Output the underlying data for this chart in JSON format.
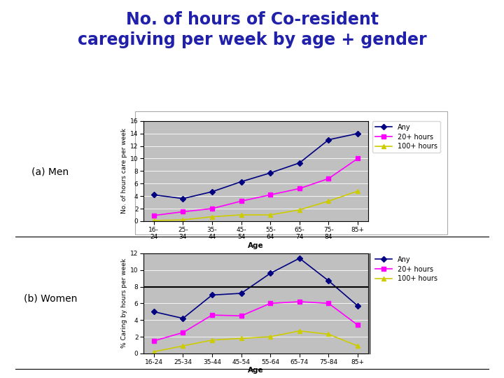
{
  "title_line1": "No. of hours of Co-resident",
  "title_line2": "caregiving per week by age + gender",
  "title_color": "#2020AA",
  "title_fontsize": 17,
  "age_labels_top": [
    "16-\n24",
    "25-\n34",
    "35-\n44",
    "45-\n54",
    "55-\n64",
    "65-\n74",
    "75-\n84",
    "85+"
  ],
  "age_labels_bottom": [
    "16-24",
    "25-34",
    "35-44",
    "45-54",
    "55-64",
    "65-74",
    "75-84",
    "85+"
  ],
  "men_any": [
    4.2,
    3.6,
    4.7,
    6.3,
    7.7,
    9.3,
    13.0,
    14.0
  ],
  "men_20plus": [
    0.9,
    1.5,
    2.0,
    3.2,
    4.2,
    5.2,
    6.8,
    10.0
  ],
  "men_100plus": [
    0.1,
    0.2,
    0.7,
    1.0,
    1.0,
    1.8,
    3.2,
    4.8
  ],
  "women_any": [
    5.0,
    4.2,
    7.0,
    7.2,
    9.6,
    11.4,
    8.7,
    5.7
  ],
  "women_20plus": [
    1.5,
    2.5,
    4.6,
    4.5,
    6.0,
    6.2,
    6.0,
    3.4
  ],
  "women_100plus": [
    0.2,
    0.9,
    1.6,
    1.8,
    2.0,
    2.7,
    2.3,
    0.9
  ],
  "color_any": "#000080",
  "color_20plus": "#FF00FF",
  "color_100plus": "#CCCC00",
  "men_ylabel": "No. of hours care per week",
  "women_ylabel": "% Caring by hours per week",
  "xlabel": "Age",
  "men_ylim": [
    0,
    16
  ],
  "men_yticks": [
    0,
    2,
    4,
    6,
    8,
    10,
    12,
    14,
    16
  ],
  "women_ylim": [
    0,
    12
  ],
  "women_yticks": [
    0,
    2,
    4,
    6,
    8,
    10,
    12
  ],
  "label_men": "(a) Men",
  "label_women": "(b) Women",
  "plot_bg": "#C0C0C0",
  "fig_bg": "#FFFFFF",
  "legend_any": "Any",
  "legend_20plus": "20+ hours",
  "legend_100plus": "100+ hours"
}
